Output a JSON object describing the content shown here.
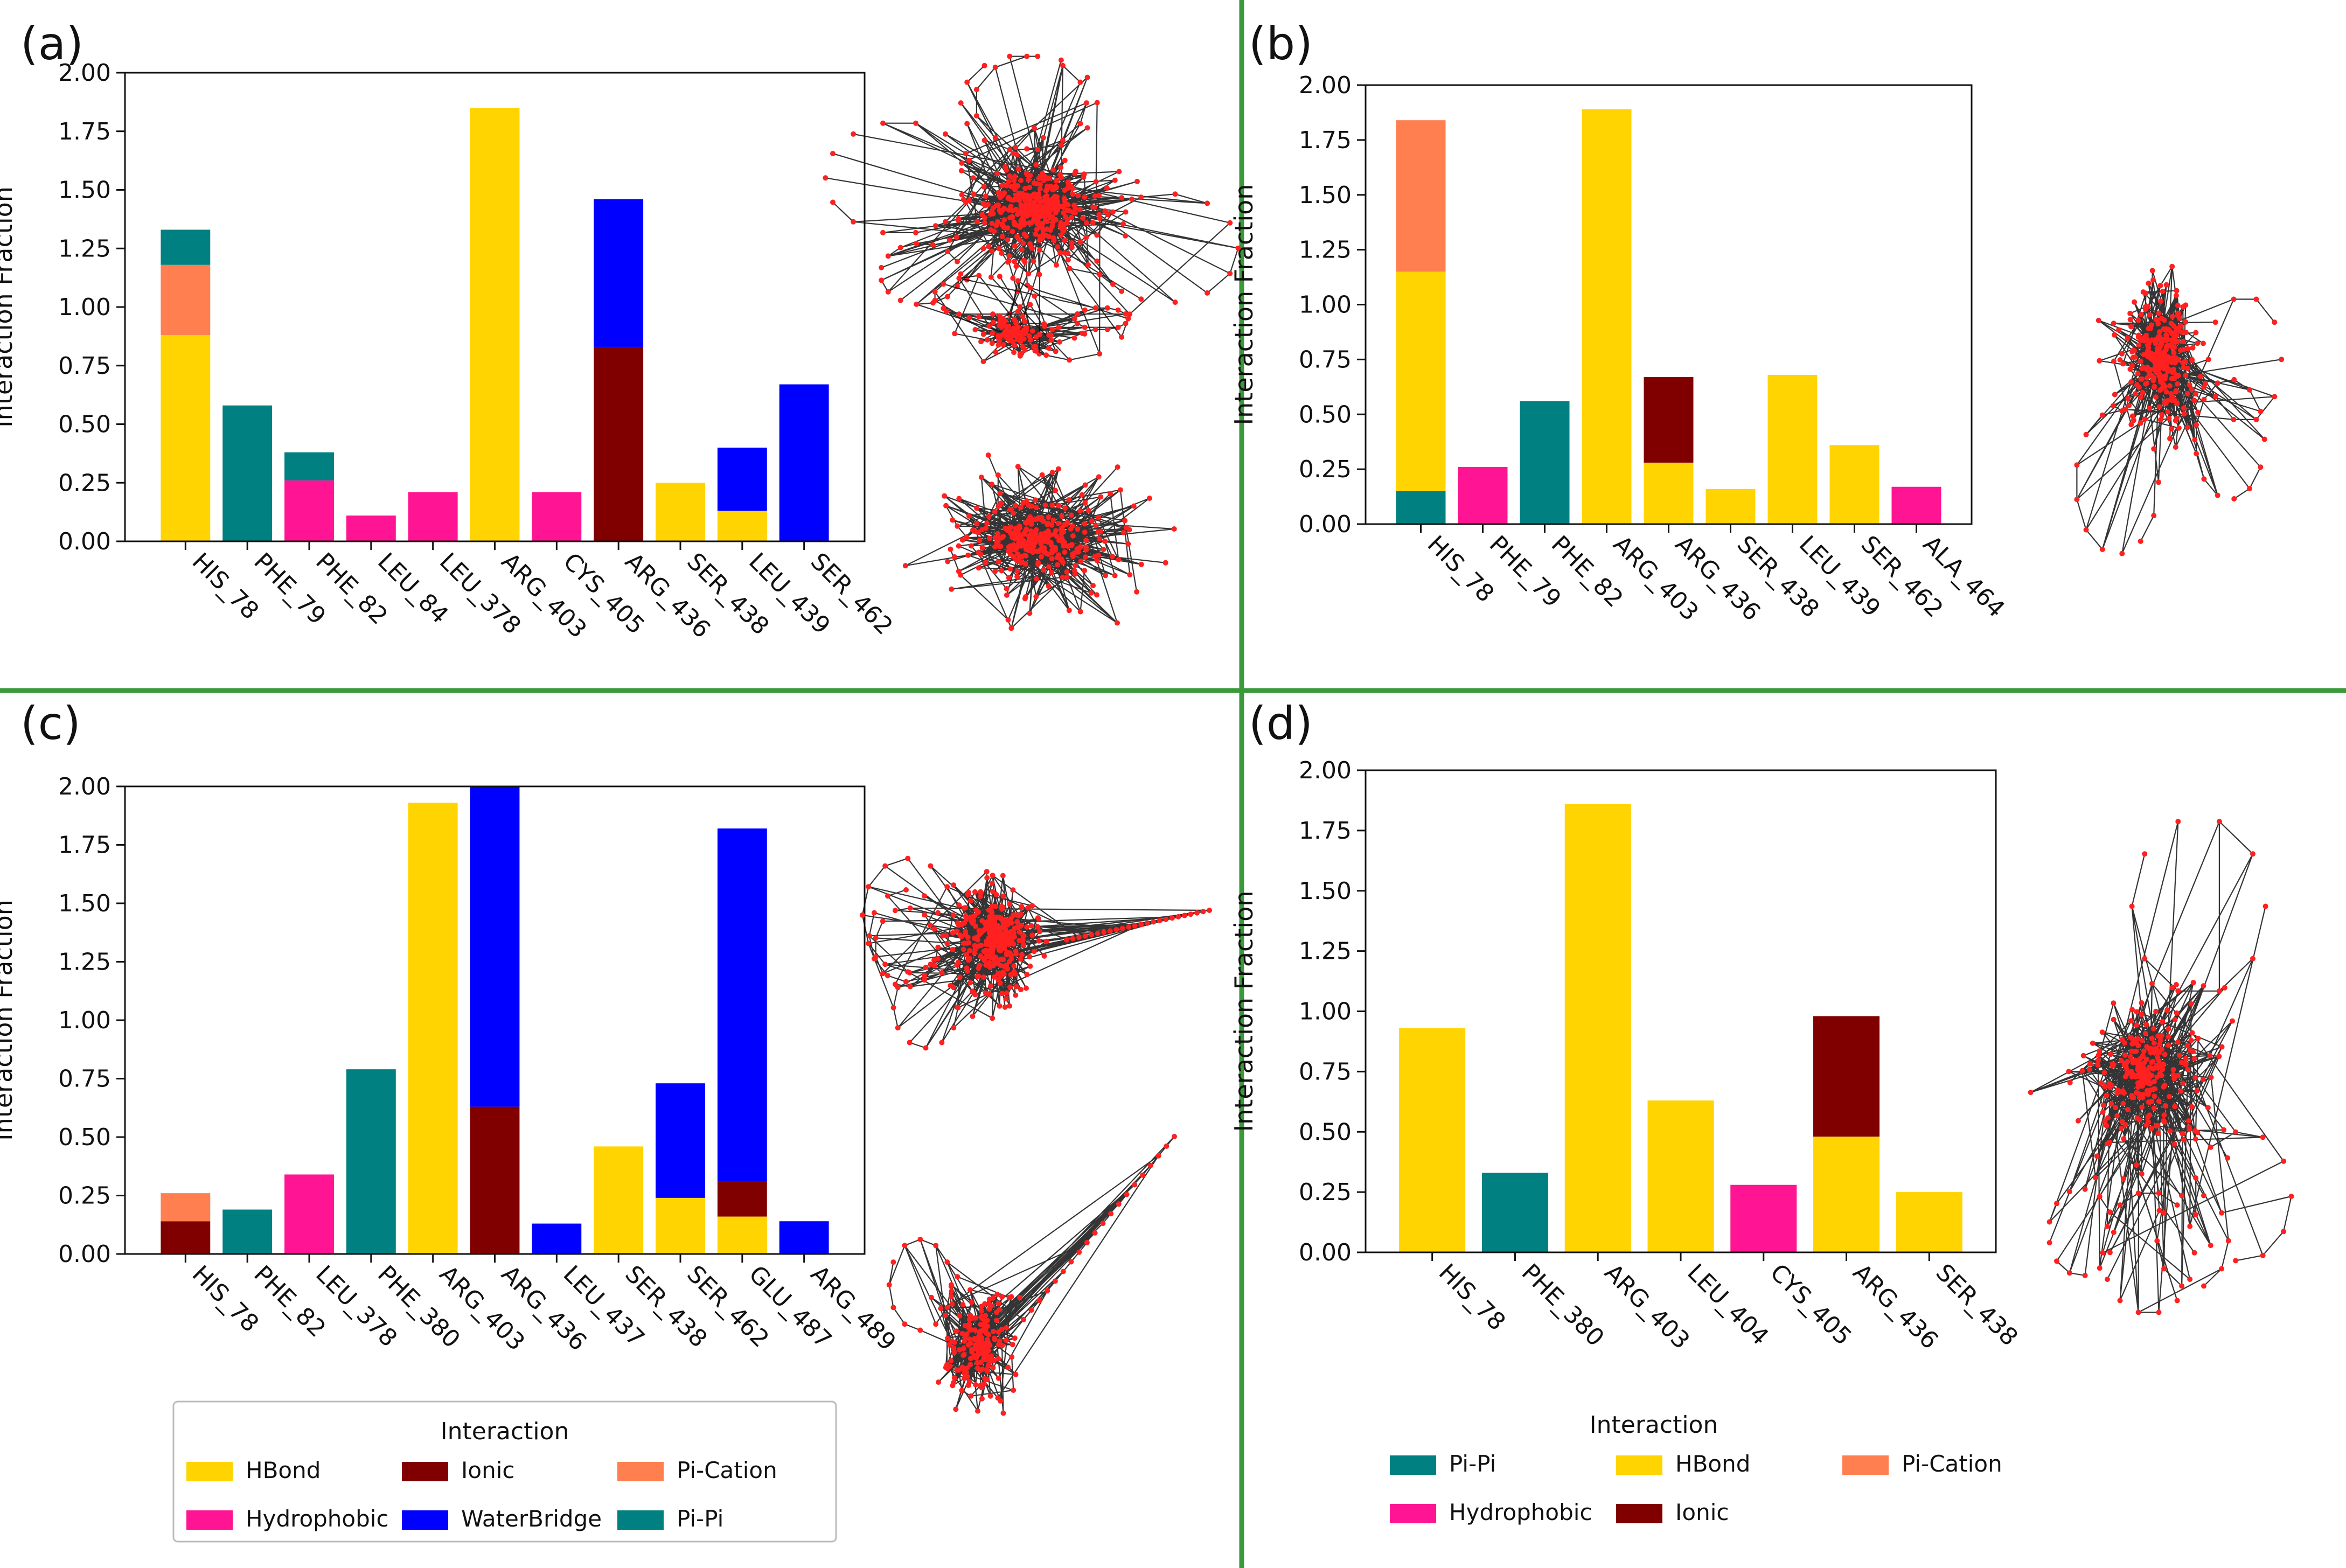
{
  "panel_labels": [
    "(a)",
    "(b)",
    "(c)",
    "(d)"
  ],
  "colors": {
    "HBond": "#FFD400",
    "Hydrophobic": "#FF1493",
    "Ionic": "#800000",
    "WaterBridge": "#0000FF",
    "Pi-Cation": "#FF7F50",
    "Pi-Pi": "#008080",
    "divider": "#3a9a3a",
    "node": "#ff2020",
    "edge": "#111111"
  },
  "legend_c": {
    "title": "Interaction",
    "items": [
      "HBond",
      "Ionic",
      "Pi-Cation",
      "Hydrophobic",
      "WaterBridge",
      "Pi-Pi"
    ]
  },
  "legend_d": {
    "title": "Interaction",
    "items": [
      "Pi-Pi",
      "HBond",
      "Pi-Cation",
      "Hydrophobic",
      "Ionic"
    ]
  },
  "chart_data": [
    {
      "type": "bar",
      "stacked": true,
      "title": "",
      "xlabel": "",
      "ylabel": "Interaction Fraction",
      "ylim": [
        0,
        2.0
      ],
      "yticks": [
        "0.00",
        "0.25",
        "0.50",
        "0.75",
        "1.00",
        "1.25",
        "1.50",
        "1.75",
        "2.00"
      ],
      "categories": [
        "HIS_78",
        "PHE_79",
        "PHE_82",
        "LEU_84",
        "LEU_378",
        "ARG_403",
        "CYS_405",
        "ARG_436",
        "SER_438",
        "LEU_439",
        "SER_462"
      ],
      "series": [
        {
          "name": "HBond",
          "values": [
            0.88,
            0,
            0,
            0,
            0,
            1.85,
            0,
            0,
            0.25,
            0.13,
            0
          ]
        },
        {
          "name": "Hydrophobic",
          "values": [
            0,
            0,
            0.26,
            0.11,
            0.21,
            0,
            0.21,
            0,
            0,
            0,
            0
          ]
        },
        {
          "name": "Ionic",
          "values": [
            0,
            0,
            0,
            0,
            0,
            0,
            0,
            0.83,
            0,
            0,
            0
          ]
        },
        {
          "name": "WaterBridge",
          "values": [
            0,
            0,
            0,
            0,
            0,
            0,
            0,
            0.63,
            0,
            0.27,
            0.67
          ]
        },
        {
          "name": "Pi-Cation",
          "values": [
            0.3,
            0,
            0,
            0,
            0,
            0,
            0,
            0,
            0,
            0,
            0
          ]
        },
        {
          "name": "Pi-Pi",
          "values": [
            0.15,
            0.58,
            0.12,
            0,
            0,
            0,
            0,
            0,
            0,
            0,
            0
          ]
        }
      ]
    },
    {
      "type": "bar",
      "stacked": true,
      "title": "",
      "xlabel": "",
      "ylabel": "Interaction Fraction",
      "ylim": [
        0,
        2.0
      ],
      "yticks": [
        "0.00",
        "0.25",
        "0.50",
        "0.75",
        "1.00",
        "1.25",
        "1.50",
        "1.75",
        "2.00"
      ],
      "categories": [
        "HIS_78",
        "PHE_79",
        "PHE_82",
        "ARG_403",
        "ARG_436",
        "SER_438",
        "LEU_439",
        "SER_462",
        "ALA_464"
      ],
      "series": [
        {
          "name": "Pi-Pi",
          "values": [
            0.15,
            0,
            0.56,
            0,
            0,
            0,
            0,
            0,
            0
          ]
        },
        {
          "name": "HBond",
          "values": [
            1.0,
            0,
            0,
            1.89,
            0.28,
            0.16,
            0.68,
            0.36,
            0
          ]
        },
        {
          "name": "Hydrophobic",
          "values": [
            0,
            0.26,
            0,
            0,
            0,
            0,
            0,
            0,
            0.17
          ]
        },
        {
          "name": "Ionic",
          "values": [
            0,
            0,
            0,
            0,
            0.39,
            0,
            0,
            0,
            0
          ]
        },
        {
          "name": "Pi-Cation",
          "values": [
            0.69,
            0,
            0,
            0,
            0,
            0,
            0,
            0,
            0
          ]
        }
      ]
    },
    {
      "type": "bar",
      "stacked": true,
      "title": "",
      "xlabel": "",
      "ylabel": "Interaction Fraction",
      "ylim": [
        0,
        2.0
      ],
      "yticks": [
        "0.00",
        "0.25",
        "0.50",
        "0.75",
        "1.00",
        "1.25",
        "1.50",
        "1.75",
        "2.00"
      ],
      "categories": [
        "HIS_78",
        "PHE_82",
        "LEU_378",
        "PHE_380",
        "ARG_403",
        "ARG_436",
        "LEU_437",
        "SER_438",
        "SER_462",
        "GLU_487",
        "ARG_489"
      ],
      "series": [
        {
          "name": "HBond",
          "values": [
            0,
            0,
            0,
            0,
            1.93,
            0,
            0,
            0.46,
            0.24,
            0.16,
            0
          ]
        },
        {
          "name": "Hydrophobic",
          "values": [
            0,
            0,
            0.34,
            0,
            0,
            0,
            0,
            0,
            0,
            0,
            0
          ]
        },
        {
          "name": "Ionic",
          "values": [
            0.14,
            0,
            0,
            0,
            0,
            0.63,
            0,
            0,
            0,
            0.15,
            0
          ]
        },
        {
          "name": "WaterBridge",
          "values": [
            0,
            0,
            0,
            0,
            0,
            1.37,
            0.13,
            0,
            0.49,
            1.51,
            0.14
          ]
        },
        {
          "name": "Pi-Cation",
          "values": [
            0.12,
            0,
            0,
            0,
            0,
            0,
            0,
            0,
            0,
            0,
            0
          ]
        },
        {
          "name": "Pi-Pi",
          "values": [
            0,
            0.19,
            0,
            0.79,
            0,
            0,
            0,
            0,
            0,
            0,
            0
          ]
        }
      ]
    },
    {
      "type": "bar",
      "stacked": true,
      "title": "",
      "xlabel": "",
      "ylabel": "Interaction Fraction",
      "ylim": [
        0,
        2.0
      ],
      "yticks": [
        "0.00",
        "0.25",
        "0.50",
        "0.75",
        "1.00",
        "1.25",
        "1.50",
        "1.75",
        "2.00"
      ],
      "categories": [
        "HIS_78",
        "PHE_380",
        "ARG_403",
        "LEU_404",
        "CYS_405",
        "ARG_436",
        "SER_438"
      ],
      "series": [
        {
          "name": "Pi-Pi",
          "values": [
            0,
            0.33,
            0,
            0,
            0,
            0,
            0
          ]
        },
        {
          "name": "HBond",
          "values": [
            0.93,
            0,
            1.86,
            0.63,
            0,
            0.48,
            0.25
          ]
        },
        {
          "name": "Hydrophobic",
          "values": [
            0,
            0,
            0,
            0,
            0.28,
            0,
            0
          ]
        },
        {
          "name": "Ionic",
          "values": [
            0,
            0,
            0,
            0,
            0,
            0.5,
            0
          ]
        }
      ]
    }
  ]
}
